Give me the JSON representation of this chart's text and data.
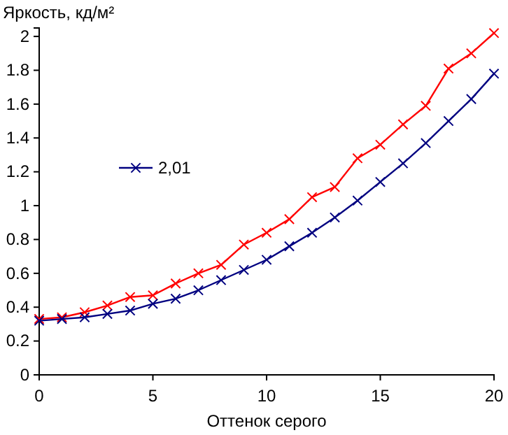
{
  "chart_data": {
    "type": "line",
    "xlabel": "Оттенок серого",
    "ylabel": "Яркость, кд/м²",
    "x": [
      0,
      1,
      2,
      3,
      4,
      5,
      6,
      7,
      8,
      9,
      10,
      11,
      12,
      13,
      14,
      15,
      16,
      17,
      18,
      19,
      20
    ],
    "series": [
      {
        "color": "#ff0000",
        "values": [
          0.33,
          0.34,
          0.37,
          0.41,
          0.46,
          0.47,
          0.54,
          0.6,
          0.65,
          0.77,
          0.84,
          0.92,
          1.05,
          1.11,
          1.28,
          1.36,
          1.48,
          1.59,
          1.81,
          1.9,
          2.02
        ]
      },
      {
        "name": "2,01",
        "color": "#000080",
        "values": [
          0.32,
          0.33,
          0.34,
          0.36,
          0.38,
          0.42,
          0.45,
          0.5,
          0.56,
          0.62,
          0.68,
          0.76,
          0.84,
          0.93,
          1.03,
          1.14,
          1.25,
          1.37,
          1.5,
          1.63,
          1.78
        ]
      }
    ],
    "xlim": [
      0,
      20
    ],
    "xticks": [
      0,
      5,
      10,
      15,
      20
    ],
    "ylim": [
      0,
      2.05
    ],
    "yticks": [
      0,
      0.2,
      0.4,
      0.6,
      0.8,
      1,
      1.2,
      1.4,
      1.6,
      1.8,
      2
    ],
    "grid": false,
    "legend": "left",
    "marker": "cross",
    "line_style": "solid"
  }
}
